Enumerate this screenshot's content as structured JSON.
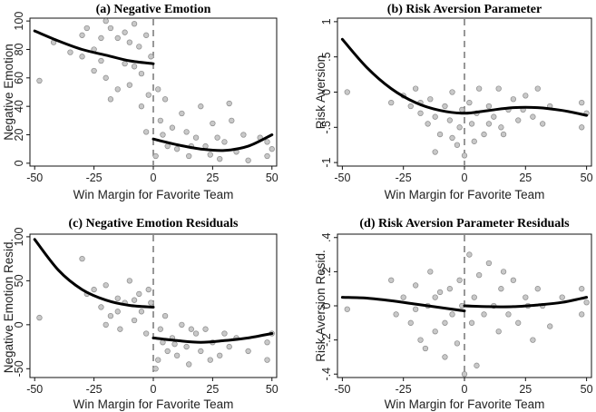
{
  "chart_data": [
    {
      "type": "scatter",
      "title": "(a) Negative Emotion",
      "xlabel": "Win Margin for Favorite Team",
      "ylabel": "Negative Emotion",
      "xlim": [
        -52,
        52
      ],
      "ylim": [
        -2,
        102
      ],
      "xticks": [
        -50,
        -25,
        0,
        25,
        50
      ],
      "xtick_labels": [
        "-50",
        "-25",
        "0",
        "25",
        "50"
      ],
      "yticks": [
        0,
        20,
        40,
        60,
        80,
        100
      ],
      "ytick_labels": [
        "0",
        "20",
        "40",
        "60",
        "80",
        "100"
      ],
      "cutoff": 0,
      "fit_segments": [
        {
          "x": [
            -50,
            -40,
            -30,
            -20,
            -10,
            0
          ],
          "y": [
            93,
            86,
            80,
            76,
            72,
            70
          ]
        },
        {
          "x": [
            0,
            10,
            20,
            30,
            40,
            50
          ],
          "y": [
            17,
            13,
            10,
            9,
            12,
            20
          ]
        }
      ],
      "points": [
        [
          -48,
          58
        ],
        [
          -42,
          85
        ],
        [
          -35,
          78
        ],
        [
          -30,
          90
        ],
        [
          -30,
          75
        ],
        [
          -28,
          95
        ],
        [
          -25,
          80
        ],
        [
          -22,
          72
        ],
        [
          -20,
          60
        ],
        [
          -18,
          95
        ],
        [
          -15,
          88
        ],
        [
          -12,
          70
        ],
        [
          -10,
          55
        ],
        [
          -8,
          98
        ],
        [
          -6,
          82
        ],
        [
          -5,
          63
        ],
        [
          -3,
          90
        ],
        [
          -2,
          48
        ],
        [
          -1,
          75
        ],
        [
          -20,
          100
        ],
        [
          -15,
          52
        ],
        [
          -10,
          85
        ],
        [
          -5,
          40
        ],
        [
          -12,
          92
        ],
        [
          -25,
          65
        ],
        [
          -18,
          45
        ],
        [
          -8,
          68
        ],
        [
          -22,
          88
        ],
        [
          -3,
          22
        ],
        [
          2,
          52
        ],
        [
          3,
          30
        ],
        [
          5,
          45
        ],
        [
          8,
          25
        ],
        [
          10,
          10
        ],
        [
          12,
          35
        ],
        [
          15,
          5
        ],
        [
          18,
          18
        ],
        [
          20,
          40
        ],
        [
          22,
          12
        ],
        [
          25,
          28
        ],
        [
          28,
          3
        ],
        [
          30,
          15
        ],
        [
          32,
          42
        ],
        [
          35,
          8
        ],
        [
          38,
          20
        ],
        [
          40,
          2
        ],
        [
          48,
          5
        ],
        [
          48,
          15
        ],
        [
          50,
          10
        ],
        [
          1,
          5
        ],
        [
          6,
          12
        ],
        [
          14,
          22
        ],
        [
          24,
          6
        ],
        [
          33,
          30
        ],
        [
          45,
          18
        ],
        [
          4,
          20
        ],
        [
          16,
          12
        ],
        [
          27,
          18
        ]
      ]
    },
    {
      "type": "scatter",
      "title": "(b) Risk Aversion Parameter",
      "xlabel": "Win Margin for Favorite Team",
      "ylabel": "Risk Aversion",
      "xlim": [
        -52,
        52
      ],
      "ylim": [
        -1.05,
        1.05
      ],
      "xticks": [
        -50,
        -25,
        0,
        25,
        50
      ],
      "xtick_labels": [
        "-50",
        "-25",
        "0",
        "25",
        "50"
      ],
      "yticks": [
        -1,
        -0.5,
        0,
        0.5,
        1
      ],
      "ytick_labels": [
        "-1",
        "-.5",
        "0",
        ".5",
        "1"
      ],
      "cutoff": 0,
      "fit_segments": [
        {
          "x": [
            -50,
            -40,
            -30,
            -20,
            -10,
            0,
            10,
            20,
            30,
            40,
            50
          ],
          "y": [
            0.75,
            0.35,
            0.05,
            -0.15,
            -0.26,
            -0.3,
            -0.26,
            -0.22,
            -0.22,
            -0.26,
            -0.33
          ]
        }
      ],
      "points": [
        [
          -48,
          0.0
        ],
        [
          -30,
          -0.15
        ],
        [
          -25,
          -0.05
        ],
        [
          -22,
          -0.2
        ],
        [
          -20,
          0.05
        ],
        [
          -18,
          -0.3
        ],
        [
          -15,
          -0.45
        ],
        [
          -14,
          -0.1
        ],
        [
          -12,
          -0.35
        ],
        [
          -10,
          -0.6
        ],
        [
          -8,
          -0.2
        ],
        [
          -6,
          -0.4
        ],
        [
          -5,
          0.0
        ],
        [
          -3,
          -0.75
        ],
        [
          -2,
          -0.5
        ],
        [
          -1,
          -0.25
        ],
        [
          0,
          -0.9
        ],
        [
          2,
          -0.15
        ],
        [
          3,
          -0.45
        ],
        [
          5,
          -0.3
        ],
        [
          6,
          0.05
        ],
        [
          8,
          -0.6
        ],
        [
          10,
          -0.2
        ],
        [
          12,
          -0.35
        ],
        [
          14,
          0.05
        ],
        [
          15,
          -0.5
        ],
        [
          18,
          -0.25
        ],
        [
          20,
          -0.1
        ],
        [
          22,
          -0.4
        ],
        [
          25,
          -0.05
        ],
        [
          28,
          -0.35
        ],
        [
          30,
          0.05
        ],
        [
          32,
          -0.45
        ],
        [
          35,
          -0.2
        ],
        [
          48,
          -0.15
        ],
        [
          48,
          -0.5
        ],
        [
          50,
          -0.3
        ],
        [
          -12,
          -0.85
        ],
        [
          -5,
          -0.65
        ],
        [
          4,
          -0.7
        ],
        [
          16,
          -0.6
        ],
        [
          10,
          -0.45
        ],
        [
          -18,
          -0.15
        ],
        [
          24,
          -0.25
        ]
      ]
    },
    {
      "type": "scatter",
      "title": "(c) Negative Emotion Residuals",
      "xlabel": "Win Margin for Favorite Team",
      "ylabel": "Negative Emotion Resid.",
      "xlim": [
        -52,
        52
      ],
      "ylim": [
        -60,
        103
      ],
      "xticks": [
        -50,
        -25,
        0,
        25,
        50
      ],
      "xtick_labels": [
        "-50",
        "-25",
        "0",
        "25",
        "50"
      ],
      "yticks": [
        -50,
        0,
        50,
        100
      ],
      "ytick_labels": [
        "-50",
        "0",
        "50",
        "100"
      ],
      "cutoff": 0,
      "fit_segments": [
        {
          "x": [
            -50,
            -40,
            -30,
            -20,
            -10,
            0
          ],
          "y": [
            97,
            62,
            40,
            28,
            22,
            20
          ]
        },
        {
          "x": [
            0,
            10,
            20,
            30,
            40,
            50
          ],
          "y": [
            -15,
            -18,
            -20,
            -18,
            -15,
            -10
          ]
        }
      ],
      "points": [
        [
          -48,
          8
        ],
        [
          -30,
          75
        ],
        [
          -28,
          35
        ],
        [
          -25,
          40
        ],
        [
          -22,
          20
        ],
        [
          -20,
          45
        ],
        [
          -18,
          10
        ],
        [
          -15,
          30
        ],
        [
          -14,
          -5
        ],
        [
          -12,
          25
        ],
        [
          -10,
          50
        ],
        [
          -8,
          5
        ],
        [
          -6,
          35
        ],
        [
          -5,
          15
        ],
        [
          -3,
          -10
        ],
        [
          -2,
          40
        ],
        [
          -1,
          25
        ],
        [
          -20,
          0
        ],
        [
          -15,
          15
        ],
        [
          -8,
          28
        ],
        [
          2,
          -40
        ],
        [
          3,
          -5
        ],
        [
          4,
          -20
        ],
        [
          5,
          10
        ],
        [
          6,
          -30
        ],
        [
          8,
          -15
        ],
        [
          10,
          -35
        ],
        [
          12,
          0
        ],
        [
          14,
          -25
        ],
        [
          15,
          -45
        ],
        [
          18,
          -10
        ],
        [
          20,
          -30
        ],
        [
          22,
          -5
        ],
        [
          25,
          -20
        ],
        [
          28,
          -35
        ],
        [
          30,
          -10
        ],
        [
          32,
          -25
        ],
        [
          35,
          -15
        ],
        [
          40,
          -30
        ],
        [
          48,
          -20
        ],
        [
          48,
          -40
        ],
        [
          50,
          -10
        ],
        [
          1,
          -50
        ],
        [
          16,
          -5
        ],
        [
          24,
          -40
        ],
        [
          9,
          -22
        ]
      ]
    },
    {
      "type": "scatter",
      "title": "(d) Risk Aversion Parameter Residuals",
      "xlabel": "Win Margin for Favorite Team",
      "ylabel": "Risk Aversion Resid.",
      "xlim": [
        -52,
        52
      ],
      "ylim": [
        -0.42,
        0.42
      ],
      "xticks": [
        -50,
        -25,
        0,
        25,
        50
      ],
      "xtick_labels": [
        "-50",
        "-25",
        "0",
        "25",
        "50"
      ],
      "yticks": [
        -0.4,
        -0.2,
        0,
        0.2,
        0.4
      ],
      "ytick_labels": [
        "-.4",
        "-.2",
        "0",
        ".2",
        ".4"
      ],
      "cutoff": 0,
      "fit_segments": [
        {
          "x": [
            -50,
            -40,
            -30,
            -20,
            -10,
            0
          ],
          "y": [
            0.05,
            0.045,
            0.03,
            0.01,
            -0.01,
            -0.03
          ]
        },
        {
          "x": [
            0,
            10,
            20,
            30,
            40,
            50
          ],
          "y": [
            0.0,
            -0.005,
            -0.005,
            0.005,
            0.02,
            0.05
          ]
        }
      ],
      "points": [
        [
          -48,
          -0.02
        ],
        [
          -30,
          0.15
        ],
        [
          -28,
          -0.05
        ],
        [
          -25,
          0.05
        ],
        [
          -22,
          -0.1
        ],
        [
          -20,
          0.12
        ],
        [
          -18,
          -0.2
        ],
        [
          -15,
          0.0
        ],
        [
          -14,
          0.2
        ],
        [
          -12,
          -0.15
        ],
        [
          -10,
          0.08
        ],
        [
          -8,
          -0.3
        ],
        [
          -6,
          0.1
        ],
        [
          -5,
          -0.05
        ],
        [
          -3,
          -0.22
        ],
        [
          -2,
          0.15
        ],
        [
          -1,
          0.0
        ],
        [
          -20,
          -0.02
        ],
        [
          -12,
          0.05
        ],
        [
          -8,
          -0.1
        ],
        [
          2,
          0.3
        ],
        [
          3,
          -0.1
        ],
        [
          4,
          0.05
        ],
        [
          5,
          -0.35
        ],
        [
          6,
          0.18
        ],
        [
          8,
          -0.05
        ],
        [
          10,
          0.25
        ],
        [
          12,
          0.0
        ],
        [
          14,
          -0.15
        ],
        [
          15,
          0.1
        ],
        [
          18,
          -0.05
        ],
        [
          20,
          0.15
        ],
        [
          22,
          -0.1
        ],
        [
          25,
          0.05
        ],
        [
          28,
          -0.2
        ],
        [
          30,
          0.1
        ],
        [
          32,
          0.0
        ],
        [
          35,
          -0.12
        ],
        [
          40,
          0.05
        ],
        [
          48,
          0.1
        ],
        [
          48,
          -0.05
        ],
        [
          50,
          0.02
        ],
        [
          0,
          -0.4
        ],
        [
          16,
          0.2
        ],
        [
          -16,
          -0.25
        ],
        [
          26,
          0.0
        ]
      ]
    }
  ]
}
